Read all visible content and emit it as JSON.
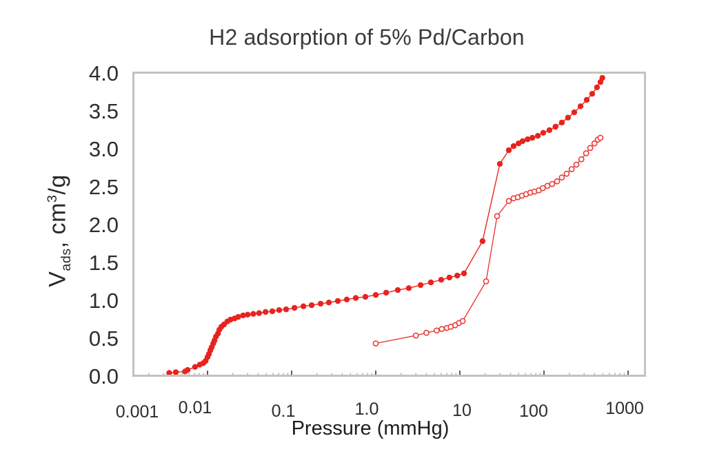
{
  "chart_data": {
    "type": "scatter",
    "title": "H2 adsorption of 5% Pd/Carbon",
    "xlabel": "Pressure (mmHg)",
    "ylabel_parts": {
      "v": "V",
      "sub": "ads",
      "mid": ", cm",
      "sup": "3",
      "end": "/g"
    },
    "axis": {
      "x_scale": "log",
      "x_range": [
        0.001,
        1000
      ],
      "y_range": [
        0.0,
        4.0
      ],
      "grid": false,
      "legend": "none"
    },
    "x_ticks": [
      {
        "label": "0.001",
        "value": 0.001
      },
      {
        "label": "0.01",
        "value": 0.01
      },
      {
        "label": "0.1",
        "value": 0.1
      },
      {
        "label": "1.0",
        "value": 1
      },
      {
        "label": "10",
        "value": 10
      },
      {
        "label": "100",
        "value": 100
      },
      {
        "label": "1000",
        "value": 1000
      }
    ],
    "y_ticks": [
      {
        "label": "0.0",
        "value": 0.0
      },
      {
        "label": "0.5",
        "value": 0.5
      },
      {
        "label": "1.0",
        "value": 1.0
      },
      {
        "label": "1.5",
        "value": 1.5
      },
      {
        "label": "2.0",
        "value": 2.0
      },
      {
        "label": "2.5",
        "value": 2.5
      },
      {
        "label": "3.0",
        "value": 3.0
      },
      {
        "label": "3.5",
        "value": 3.5
      },
      {
        "label": "4.0",
        "value": 4.0
      }
    ],
    "series": [
      {
        "id": "adsorption-run-1",
        "marker": "filled-circle",
        "color": "#e8231e",
        "points": [
          [
            0.0035,
            0.05
          ],
          [
            0.0042,
            0.06
          ],
          [
            0.0054,
            0.07
          ],
          [
            0.0058,
            0.09
          ],
          [
            0.0071,
            0.13
          ],
          [
            0.0081,
            0.16
          ],
          [
            0.0089,
            0.18
          ],
          [
            0.0095,
            0.21
          ],
          [
            0.01,
            0.26
          ],
          [
            0.0104,
            0.3
          ],
          [
            0.0108,
            0.35
          ],
          [
            0.0112,
            0.39
          ],
          [
            0.0117,
            0.44
          ],
          [
            0.0121,
            0.48
          ],
          [
            0.0126,
            0.53
          ],
          [
            0.0133,
            0.57
          ],
          [
            0.0138,
            0.62
          ],
          [
            0.0146,
            0.66
          ],
          [
            0.0157,
            0.69
          ],
          [
            0.0172,
            0.73
          ],
          [
            0.0188,
            0.755
          ],
          [
            0.021,
            0.77
          ],
          [
            0.0232,
            0.79
          ],
          [
            0.0265,
            0.81
          ],
          [
            0.03,
            0.82
          ],
          [
            0.035,
            0.83
          ],
          [
            0.041,
            0.84
          ],
          [
            0.049,
            0.855
          ],
          [
            0.059,
            0.865
          ],
          [
            0.071,
            0.88
          ],
          [
            0.086,
            0.89
          ],
          [
            0.108,
            0.91
          ],
          [
            0.138,
            0.93
          ],
          [
            0.173,
            0.945
          ],
          [
            0.221,
            0.965
          ],
          [
            0.277,
            0.98
          ],
          [
            0.354,
            1.0
          ],
          [
            0.453,
            1.02
          ],
          [
            0.578,
            1.04
          ],
          [
            0.754,
            1.055
          ],
          [
            1.0,
            1.08
          ],
          [
            1.33,
            1.11
          ],
          [
            1.83,
            1.145
          ],
          [
            2.47,
            1.17
          ],
          [
            3.41,
            1.21
          ],
          [
            4.53,
            1.245
          ],
          [
            6.0,
            1.28
          ],
          [
            7.5,
            1.31
          ],
          [
            9.3,
            1.335
          ],
          [
            11.2,
            1.365
          ],
          [
            18.6,
            1.79
          ],
          [
            29.9,
            2.81
          ],
          [
            38.2,
            2.99
          ],
          [
            43.5,
            3.045
          ],
          [
            49.8,
            3.08
          ],
          [
            55.7,
            3.11
          ],
          [
            63.8,
            3.135
          ],
          [
            72.8,
            3.155
          ],
          [
            84.5,
            3.18
          ],
          [
            98,
            3.22
          ],
          [
            116,
            3.255
          ],
          [
            137,
            3.3
          ],
          [
            163,
            3.355
          ],
          [
            193,
            3.42
          ],
          [
            229,
            3.49
          ],
          [
            272,
            3.57
          ],
          [
            322,
            3.655
          ],
          [
            374,
            3.735
          ],
          [
            427,
            3.82
          ],
          [
            469,
            3.89
          ],
          [
            495,
            3.945
          ]
        ]
      },
      {
        "id": "adsorption-run-2",
        "marker": "open-circle",
        "color": "#ea3b35",
        "points": [
          [
            1.0,
            0.44
          ],
          [
            3.0,
            0.545
          ],
          [
            4.0,
            0.58
          ],
          [
            5.3,
            0.61
          ],
          [
            6.1,
            0.63
          ],
          [
            7.0,
            0.645
          ],
          [
            7.8,
            0.66
          ],
          [
            8.8,
            0.68
          ],
          [
            9.8,
            0.71
          ],
          [
            10.8,
            0.735
          ],
          [
            20.5,
            1.26
          ],
          [
            27.7,
            2.12
          ],
          [
            38.2,
            2.32
          ],
          [
            43.5,
            2.355
          ],
          [
            48.9,
            2.37
          ],
          [
            54.7,
            2.39
          ],
          [
            61.5,
            2.41
          ],
          [
            68.8,
            2.43
          ],
          [
            77.2,
            2.445
          ],
          [
            86.6,
            2.46
          ],
          [
            96.9,
            2.49
          ],
          [
            110,
            2.52
          ],
          [
            125,
            2.545
          ],
          [
            143,
            2.58
          ],
          [
            163,
            2.63
          ],
          [
            186,
            2.68
          ],
          [
            213,
            2.74
          ],
          [
            243,
            2.8
          ],
          [
            278,
            2.87
          ],
          [
            317,
            2.95
          ],
          [
            355,
            3.02
          ],
          [
            398,
            3.08
          ],
          [
            437,
            3.13
          ],
          [
            469,
            3.155
          ]
        ]
      }
    ],
    "colors": {
      "accent_red": "#e8231e",
      "frame_gray": "#c7c1bb",
      "minor_tick": "#a9a39c",
      "major_tick": "#4a4a4a"
    }
  }
}
